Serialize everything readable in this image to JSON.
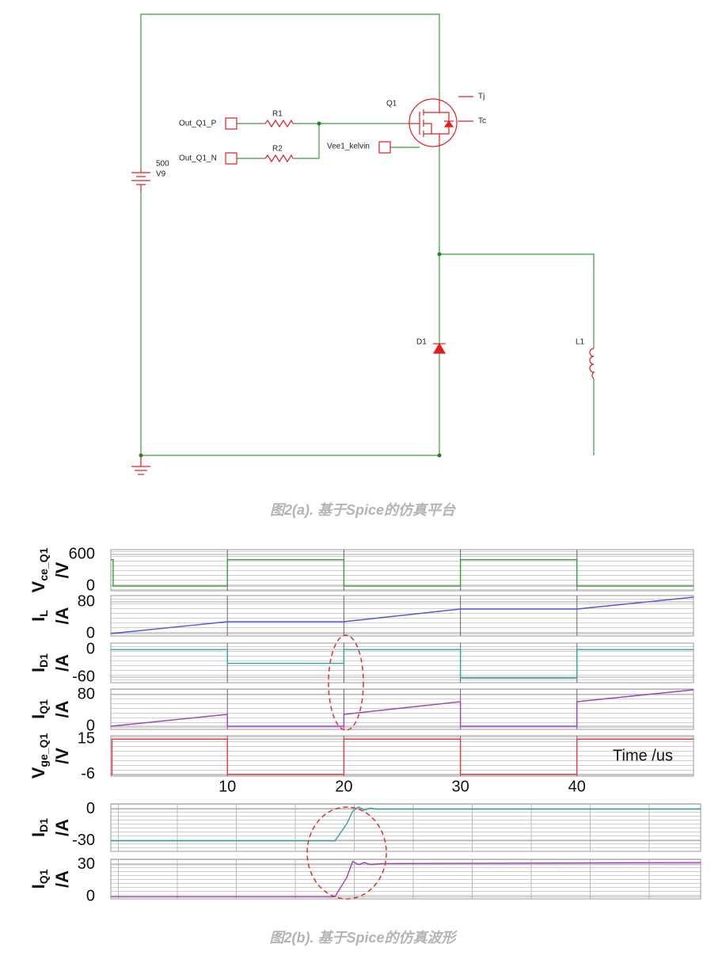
{
  "schematic": {
    "labels": {
      "out_p": "Out_Q1_P",
      "r1": "R1",
      "out_n": "Out_Q1_N",
      "r2": "R2",
      "v_value": "500",
      "v_name": "V9",
      "q1": "Q1",
      "tj": "Tj",
      "tc": "Tc",
      "vee": "Vee1_kelvin",
      "d1": "D1",
      "l1": "L1"
    }
  },
  "caption_a": "图2(a). 基于Spice的仿真平台",
  "chart_data": [
    {
      "type": "line",
      "ylabel": {
        "symbol": "V",
        "subscript": "ce_Q1",
        "unit": "/V"
      },
      "color": "#3aa03a",
      "x": [
        0,
        0.2,
        0.2,
        10,
        10,
        20,
        20,
        30,
        30,
        40,
        40,
        50
      ],
      "values": [
        500,
        500,
        0,
        0,
        500,
        500,
        0,
        0,
        500,
        500,
        0,
        0
      ],
      "xlim": [
        0,
        50
      ],
      "ylim": [
        -90,
        690
      ],
      "yticks": [
        0,
        600
      ]
    },
    {
      "type": "line",
      "ylabel": {
        "symbol": "I",
        "subscript": "L",
        "unit": "/A"
      },
      "color": "#5656d8",
      "x": [
        0,
        10,
        20,
        30,
        40,
        50
      ],
      "values": [
        0,
        30,
        30,
        62,
        62,
        92
      ],
      "xlim": [
        0,
        50
      ],
      "ylim": [
        -6,
        96
      ],
      "yticks": [
        0,
        80
      ]
    },
    {
      "type": "line",
      "ylabel": {
        "symbol": "I",
        "subscript": "D1",
        "unit": "/A"
      },
      "color": "#2fa5a5",
      "x": [
        0,
        10,
        10,
        20,
        20,
        30,
        30,
        40,
        40,
        50
      ],
      "values": [
        0,
        0,
        -30,
        -30,
        0,
        0,
        -62,
        -62,
        0,
        0
      ],
      "xlim": [
        0,
        50
      ],
      "ylim": [
        -72,
        14
      ],
      "yticks": [
        0,
        -60
      ]
    },
    {
      "type": "line",
      "ylabel": {
        "symbol": "I",
        "subscript": "Q1",
        "unit": "/A"
      },
      "color": "#a040c0",
      "x": [
        0,
        10,
        10,
        20,
        20,
        30,
        30,
        40,
        40,
        50
      ],
      "values": [
        0,
        30,
        0,
        0,
        30,
        62,
        0,
        0,
        62,
        92
      ],
      "xlim": [
        0,
        50
      ],
      "ylim": [
        -8,
        94
      ],
      "yticks": [
        0,
        80
      ]
    },
    {
      "type": "line",
      "ylabel": {
        "symbol": "V",
        "subscript": "ge_Q1",
        "unit": "/V"
      },
      "color": "#e04040",
      "x": [
        0,
        0.1,
        0.1,
        10,
        10,
        20,
        20,
        30,
        30,
        40,
        40,
        50
      ],
      "values": [
        -6,
        -6,
        15,
        15,
        -6,
        -6,
        15,
        15,
        -6,
        -6,
        15,
        15
      ],
      "xlim": [
        0,
        50
      ],
      "ylim": [
        -7,
        17
      ],
      "yticks": [
        15,
        -6
      ],
      "xticks": [
        10,
        20,
        30,
        40
      ],
      "xlabel": "Time /us"
    },
    {
      "type": "line",
      "ylabel": {
        "symbol": "I",
        "subscript": "D1",
        "unit": "/A"
      },
      "color": "#2fa5a5",
      "x": [
        0,
        38,
        40,
        41,
        42,
        43,
        44,
        45,
        47,
        100
      ],
      "values": [
        -30,
        -30,
        -14,
        -2,
        2,
        -1,
        1,
        0,
        0,
        0
      ],
      "xlim": [
        0,
        100
      ],
      "ylim": [
        -40,
        5
      ],
      "yticks": [
        0,
        -30
      ]
    },
    {
      "type": "line",
      "ylabel": {
        "symbol": "I",
        "subscript": "Q1",
        "unit": "/A"
      },
      "color": "#a040c0",
      "x": [
        0,
        38,
        40,
        41,
        42,
        43,
        44,
        46,
        100
      ],
      "values": [
        0,
        0,
        18,
        33,
        30,
        32,
        30,
        31,
        32
      ],
      "xlim": [
        0,
        100
      ],
      "ylim": [
        -2,
        35
      ],
      "yticks": [
        30,
        0
      ]
    }
  ],
  "caption_b": "图2(b). 基于Spice的仿真波形"
}
